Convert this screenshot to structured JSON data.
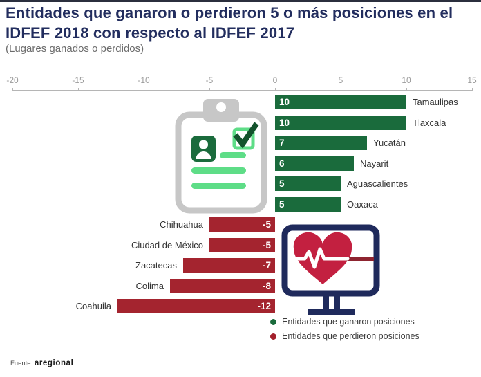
{
  "page": {
    "title": "Entidades que ganaron o perdieron 5 o más posiciones en el IDFEF 2018 con respecto al IDFEF 2017",
    "subtitle": "(Lugares ganados o perdidos)",
    "source_prefix": "Fuente:",
    "source_name": "aregional",
    "source_suffix": ".",
    "colors": {
      "title": "#222d5e",
      "top_bar": "#2b2f3e"
    }
  },
  "chart_data": {
    "type": "bar",
    "orientation": "horizontal",
    "title": "Entidades que ganaron o perdieron 5 o más posiciones en el IDFEF 2018 con respecto al IDFEF 2017",
    "subtitle": "(Lugares ganados o perdidos)",
    "xlabel": "Lugares ganados o perdidos",
    "xlim": [
      -20,
      15
    ],
    "x_ticks": [
      -20,
      -15,
      -10,
      -5,
      0,
      5,
      10,
      15
    ],
    "grid": false,
    "legend_position": "bottom-right",
    "categories": [
      "Tamaulipas",
      "Tlaxcala",
      "Yucatán",
      "Nayarit",
      "Aguascalientes",
      "Oaxaca",
      "Chihuahua",
      "Ciudad de México",
      "Zacatecas",
      "Colima",
      "Coahuila"
    ],
    "values": [
      10,
      10,
      7,
      6,
      5,
      5,
      -5,
      -5,
      -7,
      -8,
      -12
    ],
    "bar_value_labels": [
      "10",
      "10",
      "7",
      "6",
      "5",
      "5",
      "-5",
      "-5",
      "-7",
      "-8",
      "-12"
    ],
    "colors": {
      "positive": "#1a6b3c",
      "negative": "#a4242f"
    },
    "legend": [
      {
        "label": "Entidades que ganaron posiciones",
        "color": "#1a6b3c"
      },
      {
        "label": "Entidades que perdieron posiciones",
        "color": "#a3202c"
      }
    ]
  },
  "icons": {
    "clipboard": "clipboard-checklist-icon",
    "monitor": "monitor-heartbeat-icon"
  }
}
